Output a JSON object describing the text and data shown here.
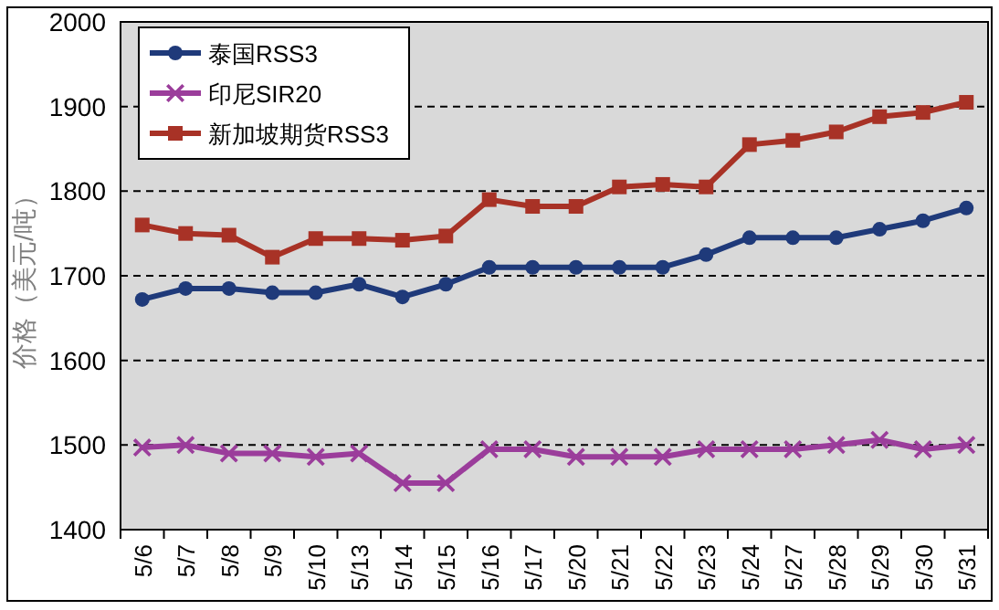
{
  "chart_data": {
    "type": "line",
    "ylabel": "价格（美元/吨）",
    "categories": [
      "5/6",
      "5/7",
      "5/8",
      "5/9",
      "5/10",
      "5/13",
      "5/14",
      "5/15",
      "5/16",
      "5/17",
      "5/20",
      "5/21",
      "5/22",
      "5/23",
      "5/24",
      "5/27",
      "5/28",
      "5/29",
      "5/30",
      "5/31"
    ],
    "series": [
      {
        "name": "泰国RSS3",
        "color": "#1f3a7a",
        "marker": "circle",
        "values": [
          1672,
          1685,
          1685,
          1680,
          1680,
          1690,
          1675,
          1690,
          1710,
          1710,
          1710,
          1710,
          1710,
          1725,
          1745,
          1745,
          1745,
          1755,
          1765,
          1780
        ]
      },
      {
        "name": "印尼SIR20",
        "color": "#9b3d9b",
        "marker": "cross",
        "values": [
          1497,
          1500,
          1490,
          1490,
          1486,
          1490,
          1455,
          1455,
          1495,
          1495,
          1486,
          1486,
          1486,
          1495,
          1495,
          1495,
          1500,
          1506,
          1495,
          1500
        ]
      },
      {
        "name": "新加坡期货RSS3",
        "color": "#a83226",
        "marker": "square",
        "values": [
          1760,
          1750,
          1748,
          1722,
          1744,
          1744,
          1742,
          1747,
          1790,
          1782,
          1782,
          1805,
          1808,
          1805,
          1855,
          1860,
          1870,
          1888,
          1893,
          1905
        ]
      }
    ],
    "ylim": [
      1400,
      2000
    ],
    "yticks": [
      1400,
      1500,
      1600,
      1700,
      1800,
      1900,
      2000
    ],
    "grid": "y",
    "legend": "top left",
    "line_style": "solid"
  }
}
